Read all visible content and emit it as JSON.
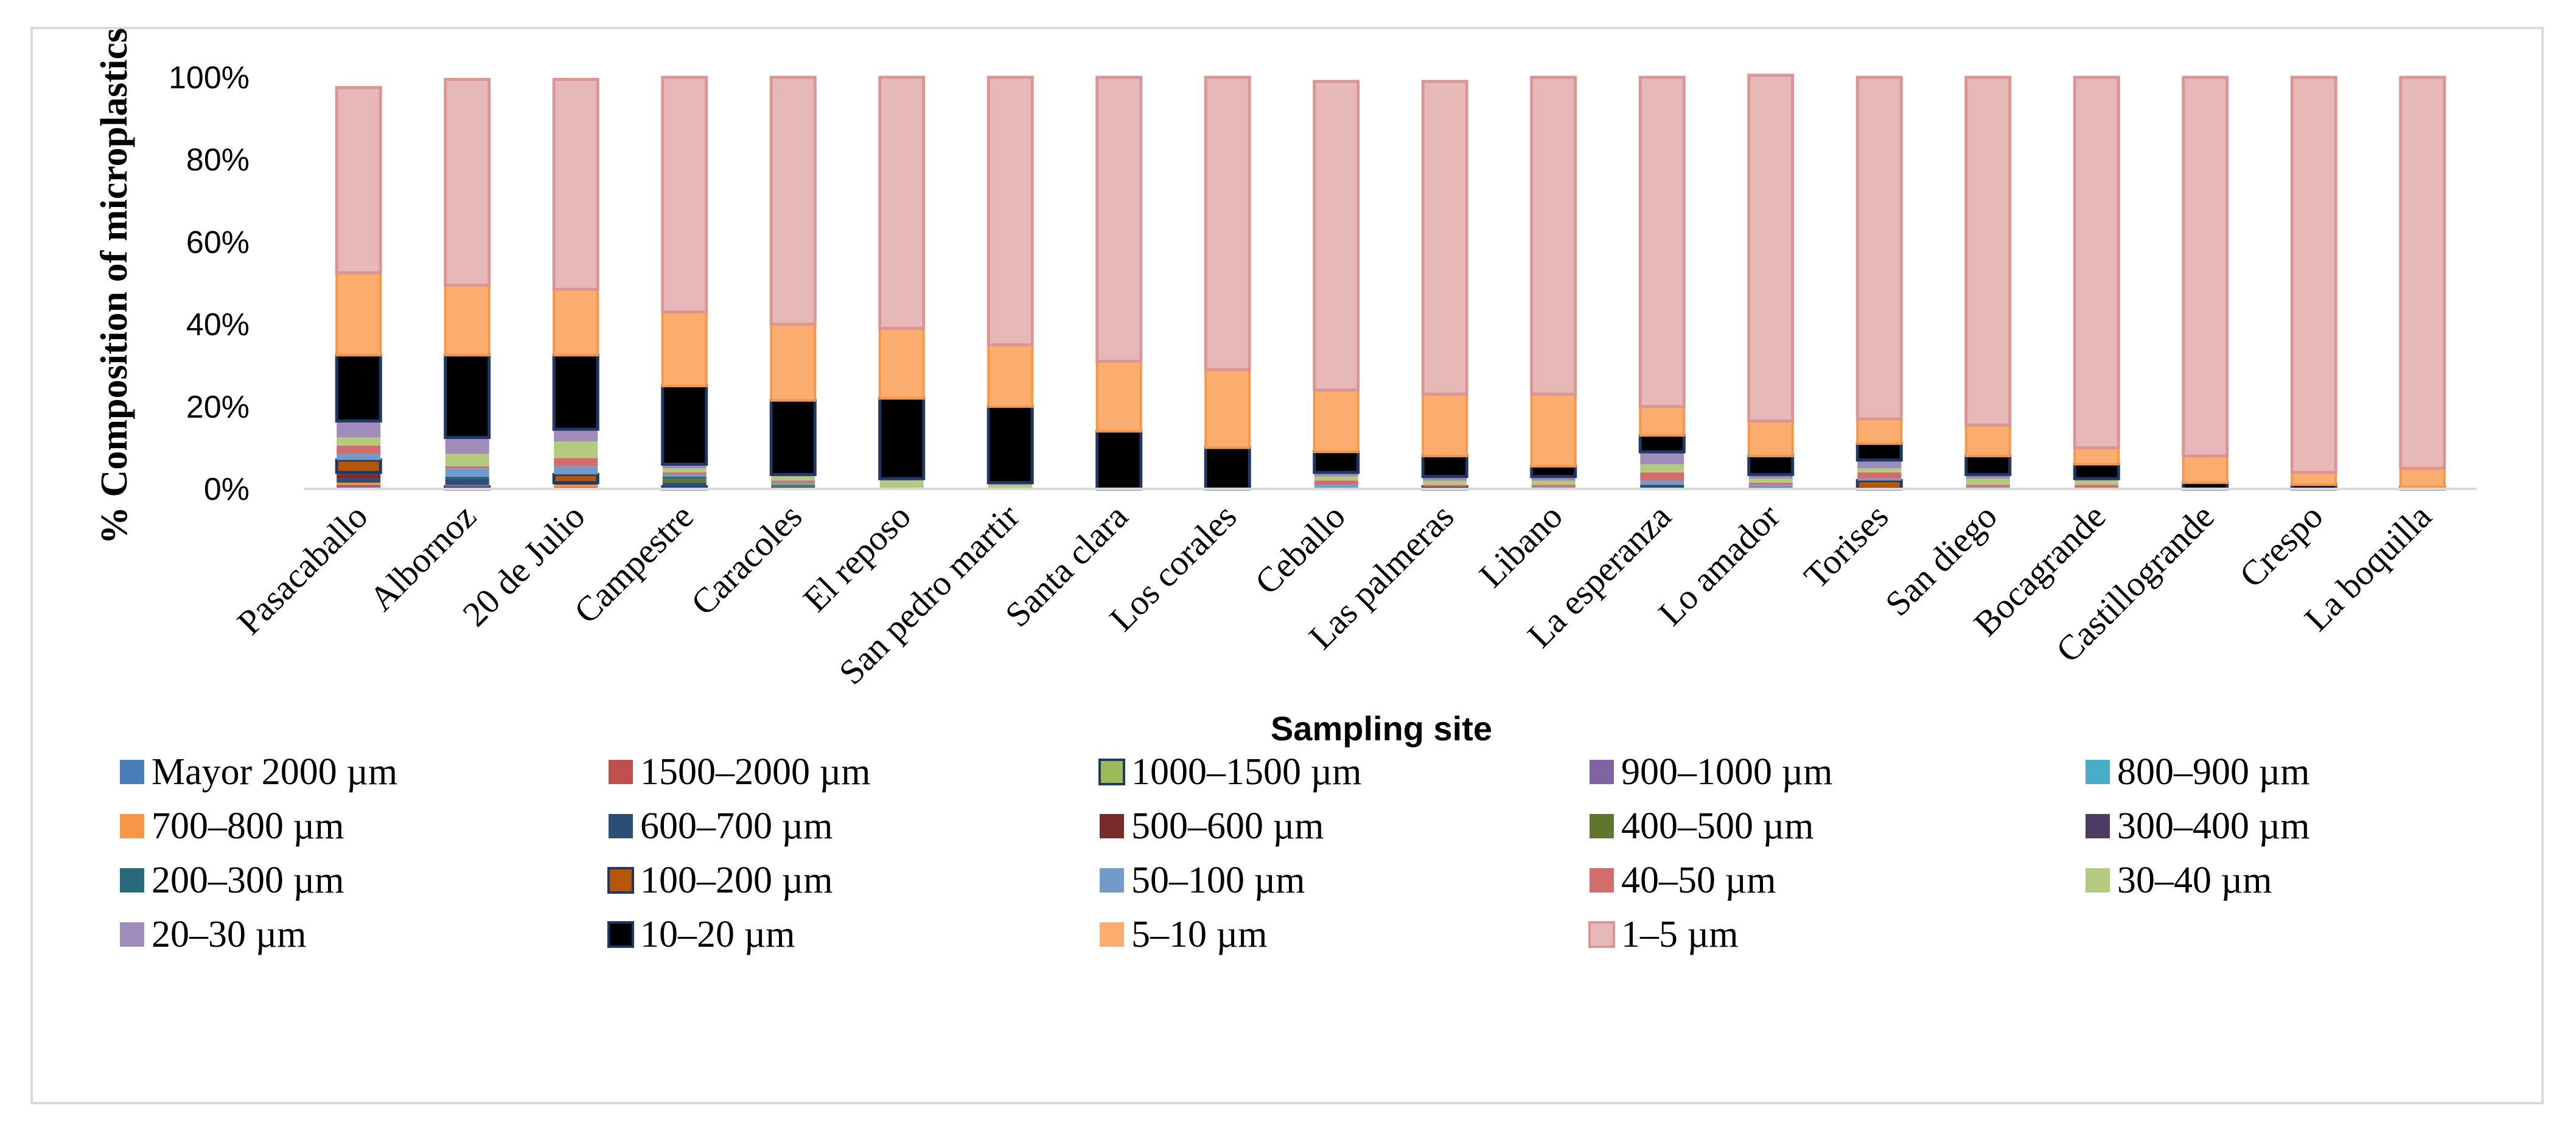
{
  "chart_data": {
    "type": "bar",
    "stacked": "percent",
    "ylabel": "% Composition of microplastics",
    "xlabel": "Sampling site",
    "ylim": [
      0,
      100
    ],
    "yticks": [
      "0%",
      "20%",
      "40%",
      "60%",
      "80%",
      "100%"
    ],
    "grid": false,
    "legend_position": "bottom",
    "categories": [
      "Pasacaballo",
      "Albornoz",
      "20 de Julio",
      "Campestre",
      "Caracoles",
      "El reposo",
      "San pedro martir",
      "Santa clara",
      "Los corales",
      "Ceballo",
      "Las palmeras",
      "Libano",
      "La esperanza",
      "Lo amador",
      "Torises",
      "San diego",
      "Bocagrande",
      "Castillogrande",
      "Crespo",
      "La boquilla"
    ],
    "series": [
      {
        "name": "Mayor 2000 µm",
        "color": "#4a7ebb",
        "values": [
          0.5,
          0,
          0,
          0,
          0,
          0,
          0,
          0,
          0,
          0,
          0,
          0,
          0,
          0,
          0,
          0,
          0,
          0,
          0,
          0
        ]
      },
      {
        "name": "1500–2000 µm",
        "color": "#c0504d",
        "values": [
          0.5,
          0,
          0.5,
          0,
          0,
          0,
          0,
          0,
          0,
          0,
          0,
          0,
          0,
          0,
          0,
          0,
          0,
          0,
          0,
          0
        ]
      },
      {
        "name": "1000–1500 µm",
        "color": "#9bbb59",
        "values": [
          0,
          0.5,
          0,
          0.5,
          0,
          0,
          0,
          0,
          0,
          0,
          0.5,
          0,
          0,
          0,
          0,
          0,
          0,
          0,
          0,
          0
        ]
      },
      {
        "name": "900–1000 µm",
        "color": "#8064a2",
        "values": [
          0,
          0.5,
          0,
          0,
          0,
          0,
          0,
          0,
          0,
          0,
          0,
          0,
          0,
          0.5,
          0,
          0,
          0,
          0,
          0,
          0
        ]
      },
      {
        "name": "800–900 µm",
        "color": "#4bacc6",
        "values": [
          0,
          0,
          0,
          0,
          0,
          0,
          0,
          0,
          0,
          0.5,
          0,
          0,
          0,
          0,
          0,
          0,
          0,
          0,
          0,
          0
        ]
      },
      {
        "name": "700–800 µm",
        "color": "#f79646",
        "values": [
          0.5,
          0,
          0.5,
          0,
          0,
          0,
          0,
          0,
          0,
          0,
          0,
          0,
          0,
          0,
          0,
          0,
          0,
          0,
          0,
          0
        ]
      },
      {
        "name": "600–700 µm",
        "color": "#2c4d75",
        "values": [
          1,
          1.5,
          0.5,
          1,
          0.5,
          0,
          0,
          0,
          0,
          0,
          0,
          0,
          1,
          0,
          0,
          0,
          0,
          0,
          0,
          0
        ]
      },
      {
        "name": "500–600 µm",
        "color": "#772c2a",
        "values": [
          1,
          0,
          0,
          0,
          0,
          0,
          0,
          0,
          0,
          0,
          0,
          0,
          0,
          0,
          0,
          0,
          0,
          0,
          0,
          0
        ]
      },
      {
        "name": "400–500 µm",
        "color": "#5f7530",
        "values": [
          0,
          0,
          0,
          1,
          0.5,
          0,
          0,
          0,
          0,
          0,
          0,
          0,
          0,
          0,
          0,
          0,
          0,
          0,
          0,
          0
        ]
      },
      {
        "name": "300–400 µm",
        "color": "#4d3b62",
        "values": [
          0.5,
          0,
          0,
          0,
          0,
          0,
          0,
          0,
          0,
          0,
          0,
          0,
          0,
          0,
          0,
          0,
          0,
          0,
          0,
          0
        ]
      },
      {
        "name": "200–300 µm",
        "color": "#276a7c",
        "values": [
          0,
          0.5,
          0,
          0.5,
          0,
          0,
          0,
          0,
          0,
          0,
          0,
          0,
          0,
          0,
          0,
          0,
          0,
          0,
          0,
          0
        ]
      },
      {
        "name": "100–200 µm",
        "color": "#b65708",
        "values": [
          3,
          0,
          2,
          0,
          0,
          0,
          0,
          0,
          0,
          0,
          0,
          0,
          0,
          0,
          2,
          0,
          0,
          0,
          0,
          0
        ]
      },
      {
        "name": "50–100 µm",
        "color": "#729aca",
        "values": [
          1.5,
          2,
          2,
          0.5,
          0.5,
          0,
          0,
          0,
          0,
          0.5,
          0,
          0.5,
          1,
          0.5,
          0.5,
          0.5,
          0,
          0,
          0,
          0
        ]
      },
      {
        "name": "40–50 µm",
        "color": "#d16d6a",
        "values": [
          2,
          0.5,
          2,
          0.5,
          0.5,
          0,
          0,
          0,
          0,
          1,
          0.5,
          0.5,
          2,
          0.5,
          1.5,
          0.5,
          1,
          0,
          0,
          0
        ]
      },
      {
        "name": "30–40 µm",
        "color": "#b3ca7f",
        "values": [
          2,
          3,
          4,
          1,
          1,
          2,
          1,
          0,
          0,
          1,
          1,
          1,
          2,
          1,
          1,
          1.5,
          1,
          0,
          0,
          0
        ]
      },
      {
        "name": "20–30 µm",
        "color": "#a08bbd",
        "values": [
          4,
          4,
          3,
          1,
          0.5,
          0.5,
          0.5,
          0,
          0,
          1,
          1,
          1,
          3,
          1,
          2,
          1,
          0.5,
          0,
          0,
          0
        ]
      },
      {
        "name": "10–20 µm",
        "color": "#000000",
        "values": [
          16,
          20,
          18,
          19,
          18,
          19.5,
          18.5,
          14,
          10,
          5,
          5,
          2.5,
          4,
          4.5,
          4,
          4.5,
          3.5,
          1.5,
          1,
          0.5
        ]
      },
      {
        "name": "5–10 µm",
        "color": "#fbac6f",
        "values": [
          20,
          17,
          16,
          18,
          18.5,
          17,
          15,
          17,
          19,
          15,
          15,
          17.5,
          7,
          8.5,
          6,
          7.5,
          4,
          6.5,
          3,
          4.5
        ]
      },
      {
        "name": "1–5 µm",
        "color": "#e6b9b8",
        "values": [
          45,
          50,
          51,
          57,
          60,
          61,
          65,
          69,
          71,
          75,
          76,
          77,
          80,
          84,
          83,
          84.5,
          90,
          92,
          96,
          95
        ]
      }
    ]
  }
}
